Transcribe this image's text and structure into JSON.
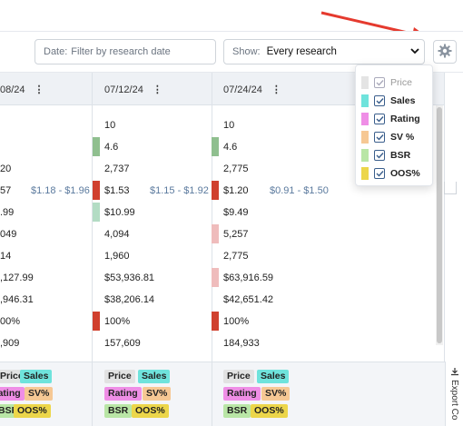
{
  "toolbar": {
    "date_label": "Date:",
    "date_placeholder": "Filter by research date",
    "show_label": "Show:",
    "show_value": "Every research"
  },
  "columns": [
    {
      "date": "08/24"
    },
    {
      "date": "07/12/24"
    },
    {
      "date": "07/24/24"
    }
  ],
  "rows": {
    "col0": [
      "",
      "",
      "20",
      "57",
      ".99",
      "049",
      "14",
      ",127.99",
      ",946.31",
      "00%",
      ",909"
    ],
    "col0_range": "$1.18 - $1.96",
    "col1": [
      "10",
      "4.6",
      "2,737",
      "$1.53",
      "$10.99",
      "4,094",
      "1,960",
      "$53,936.81",
      "$38,206.14",
      "100%",
      "157,609"
    ],
    "col1_range": "$1.15 - $1.92",
    "col2": [
      "10",
      "4.6",
      "2,775",
      "$1.20",
      "$9.49",
      "5,257",
      "2,775",
      "$63,916.59",
      "$42,651.42",
      "100%",
      "184,933"
    ],
    "col2_range": "$0.91 - $1.50"
  },
  "chips": {
    "price": "Price",
    "sales": "Sales",
    "rating": "Rating",
    "sv": "SV%",
    "bsr": "BSR",
    "oos": "OOS%"
  },
  "export_label": "Export Co",
  "panel": {
    "options": [
      {
        "label": "Price",
        "checked": true,
        "disabled": true,
        "color": "#e4e4e4"
      },
      {
        "label": "Sales",
        "checked": true,
        "disabled": false,
        "color": "#6fe3dc"
      },
      {
        "label": "Rating",
        "checked": true,
        "disabled": false,
        "color": "#ef8ee6"
      },
      {
        "label": "SV %",
        "checked": true,
        "disabled": false,
        "color": "#f6c894"
      },
      {
        "label": "BSR",
        "checked": true,
        "disabled": false,
        "color": "#b9e6a6"
      },
      {
        "label": "OOS%",
        "checked": true,
        "disabled": false,
        "color": "#ecd64a"
      }
    ]
  },
  "colors": {
    "accent_red": "#e53a2e",
    "bar_green": "#8fbf8f",
    "bar_red": "#d0402e",
    "bar_lightgreen": "#b3dcc4",
    "bar_pink": "#efbcbc",
    "chip_sales": "#6fe3dc",
    "chip_rating": "#ef8ee6",
    "chip_sv": "#f6c894",
    "chip_bsr": "#b9e6a6",
    "chip_oos": "#ecd64a",
    "chip_price": "#e2e2e2"
  },
  "icons": {
    "gear": "gear-icon",
    "chevron": "chevron-down-icon",
    "dots": "more-vertical-icon",
    "export": "download-icon",
    "check": "check-icon"
  }
}
